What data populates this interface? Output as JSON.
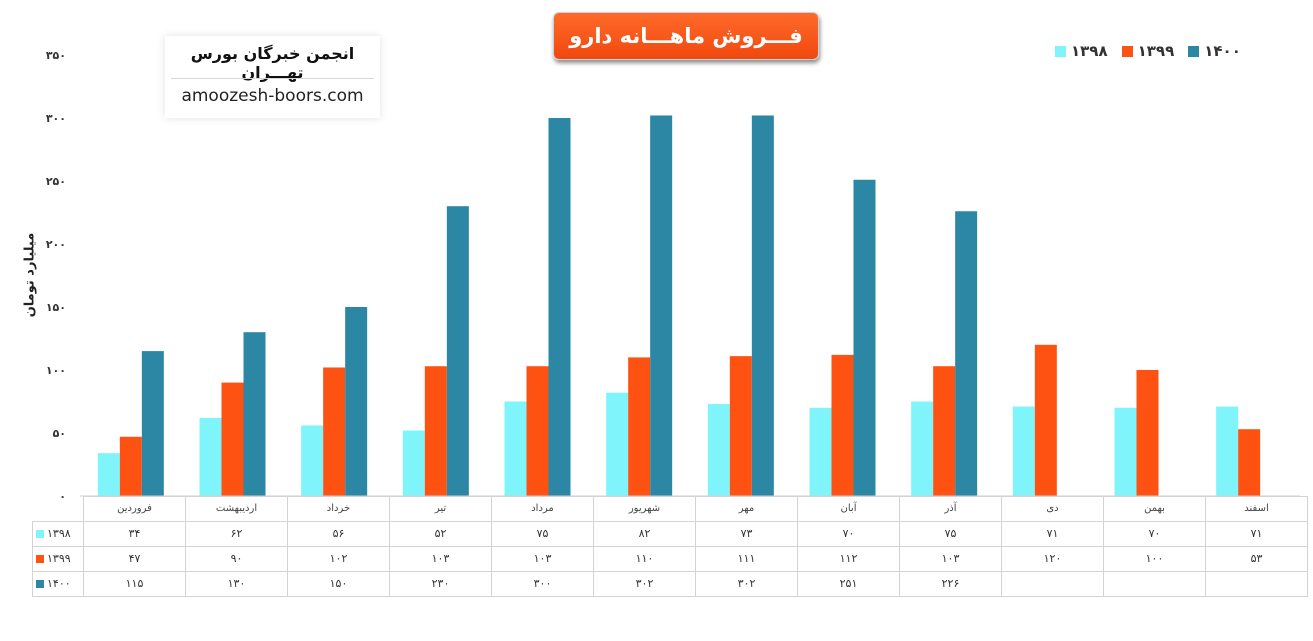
{
  "title": "فـــروش ماهـــانه دارو",
  "brand": {
    "name": "انجمن خبرگان بورس تهـــران",
    "url": "amoozesh-boors.com"
  },
  "colors": {
    "accent": "#f0480f",
    "s1398": "#7ff5fb",
    "s1399": "#fe5213",
    "s1400": "#2c87a5"
  },
  "chart_data": {
    "type": "bar",
    "title": "فـــروش ماهـــانه دارو",
    "ylabel": "میلیارد تومان",
    "xlabel": "",
    "ylim": [
      0,
      350
    ],
    "y_ticks": [
      0,
      50,
      100,
      150,
      200,
      250,
      300,
      350
    ],
    "y_tick_labels": [
      "۰",
      "۵۰",
      "۱۰۰",
      "۱۵۰",
      "۲۰۰",
      "۲۵۰",
      "۳۰۰",
      "۳۵۰"
    ],
    "categories": [
      "فروردین",
      "اردیبهشت",
      "خرداد",
      "تیر",
      "مرداد",
      "شهریور",
      "مهر",
      "آبان",
      "آذر",
      "دی",
      "بهمن",
      "اسفند"
    ],
    "series": [
      {
        "name": "۱۳۹۸",
        "color": "#7ff5fb",
        "values": [
          34,
          62,
          56,
          52,
          75,
          82,
          73,
          70,
          75,
          71,
          70,
          71
        ],
        "labels": [
          "۳۴",
          "۶۲",
          "۵۶",
          "۵۲",
          "۷۵",
          "۸۲",
          "۷۳",
          "۷۰",
          "۷۵",
          "۷۱",
          "۷۰",
          "۷۱"
        ]
      },
      {
        "name": "۱۳۹۹",
        "color": "#fe5213",
        "values": [
          47,
          90,
          102,
          103,
          103,
          110,
          111,
          112,
          103,
          120,
          100,
          53
        ],
        "labels": [
          "۴۷",
          "۹۰",
          "۱۰۲",
          "۱۰۳",
          "۱۰۳",
          "۱۱۰",
          "۱۱۱",
          "۱۱۲",
          "۱۰۳",
          "۱۲۰",
          "۱۰۰",
          "۵۳"
        ]
      },
      {
        "name": "۱۴۰۰",
        "color": "#2c87a5",
        "values": [
          115,
          130,
          150,
          230,
          300,
          302,
          302,
          251,
          226,
          null,
          null,
          null
        ],
        "labels": [
          "۱۱۵",
          "۱۳۰",
          "۱۵۰",
          "۲۳۰",
          "۳۰۰",
          "۳۰۲",
          "۳۰۲",
          "۲۵۱",
          "۲۲۶",
          "",
          "",
          ""
        ]
      }
    ],
    "legend": {
      "placement": "top-right",
      "order": [
        "۱۳۹۸",
        "۱۳۹۹",
        "۱۴۰۰"
      ]
    },
    "grid": false,
    "data_table": true
  }
}
